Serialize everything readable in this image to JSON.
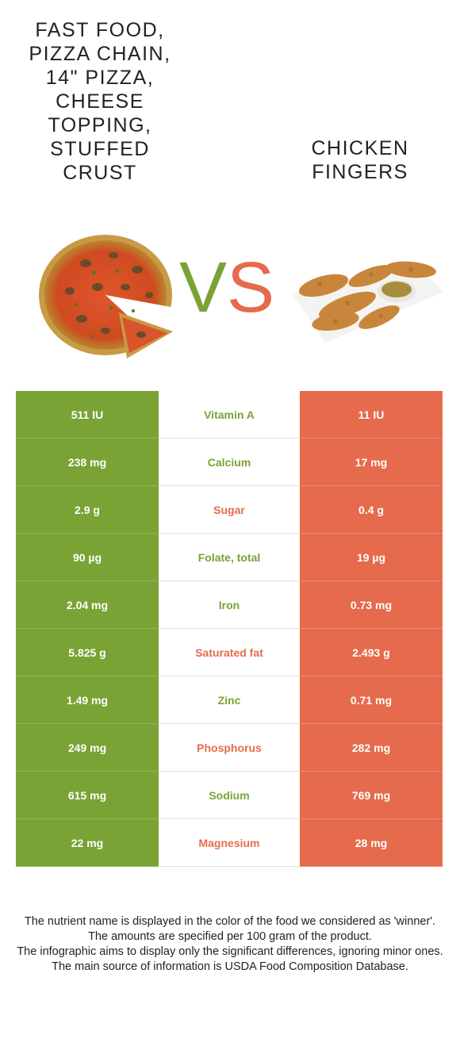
{
  "foods": {
    "left": {
      "name": "FAST FOOD,\nPIZZA CHAIN,\n14\" PIZZA,\nCHEESE\nTOPPING,\nSTUFFED\nCRUST",
      "color": "#7aa335"
    },
    "right": {
      "name": "CHICKEN\nFINGERS",
      "color": "#e56b4c"
    }
  },
  "vs": {
    "v": "V",
    "s": "S"
  },
  "rows": [
    {
      "left": "511 IU",
      "nutrient": "Vitamin A",
      "right": "11 IU",
      "winner": "left"
    },
    {
      "left": "238 mg",
      "nutrient": "Calcium",
      "right": "17 mg",
      "winner": "left"
    },
    {
      "left": "2.9 g",
      "nutrient": "Sugar",
      "right": "0.4 g",
      "winner": "right"
    },
    {
      "left": "90 µg",
      "nutrient": "Folate, total",
      "right": "19 µg",
      "winner": "left"
    },
    {
      "left": "2.04 mg",
      "nutrient": "Iron",
      "right": "0.73 mg",
      "winner": "left"
    },
    {
      "left": "5.825 g",
      "nutrient": "Saturated fat",
      "right": "2.493 g",
      "winner": "right"
    },
    {
      "left": "1.49 mg",
      "nutrient": "Zinc",
      "right": "0.71 mg",
      "winner": "left"
    },
    {
      "left": "249 mg",
      "nutrient": "Phosphorus",
      "right": "282 mg",
      "winner": "right"
    },
    {
      "left": "615 mg",
      "nutrient": "Sodium",
      "right": "769 mg",
      "winner": "left"
    },
    {
      "left": "22 mg",
      "nutrient": "Magnesium",
      "right": "28 mg",
      "winner": "right"
    }
  ],
  "footer": [
    "The nutrient name is displayed in the color of the food we considered as 'winner'.",
    "The amounts are specified per 100 gram of the product.",
    "The infographic aims to display only the significant differences, ignoring minor ones.",
    "The main source of information is USDA Food Composition Database."
  ]
}
